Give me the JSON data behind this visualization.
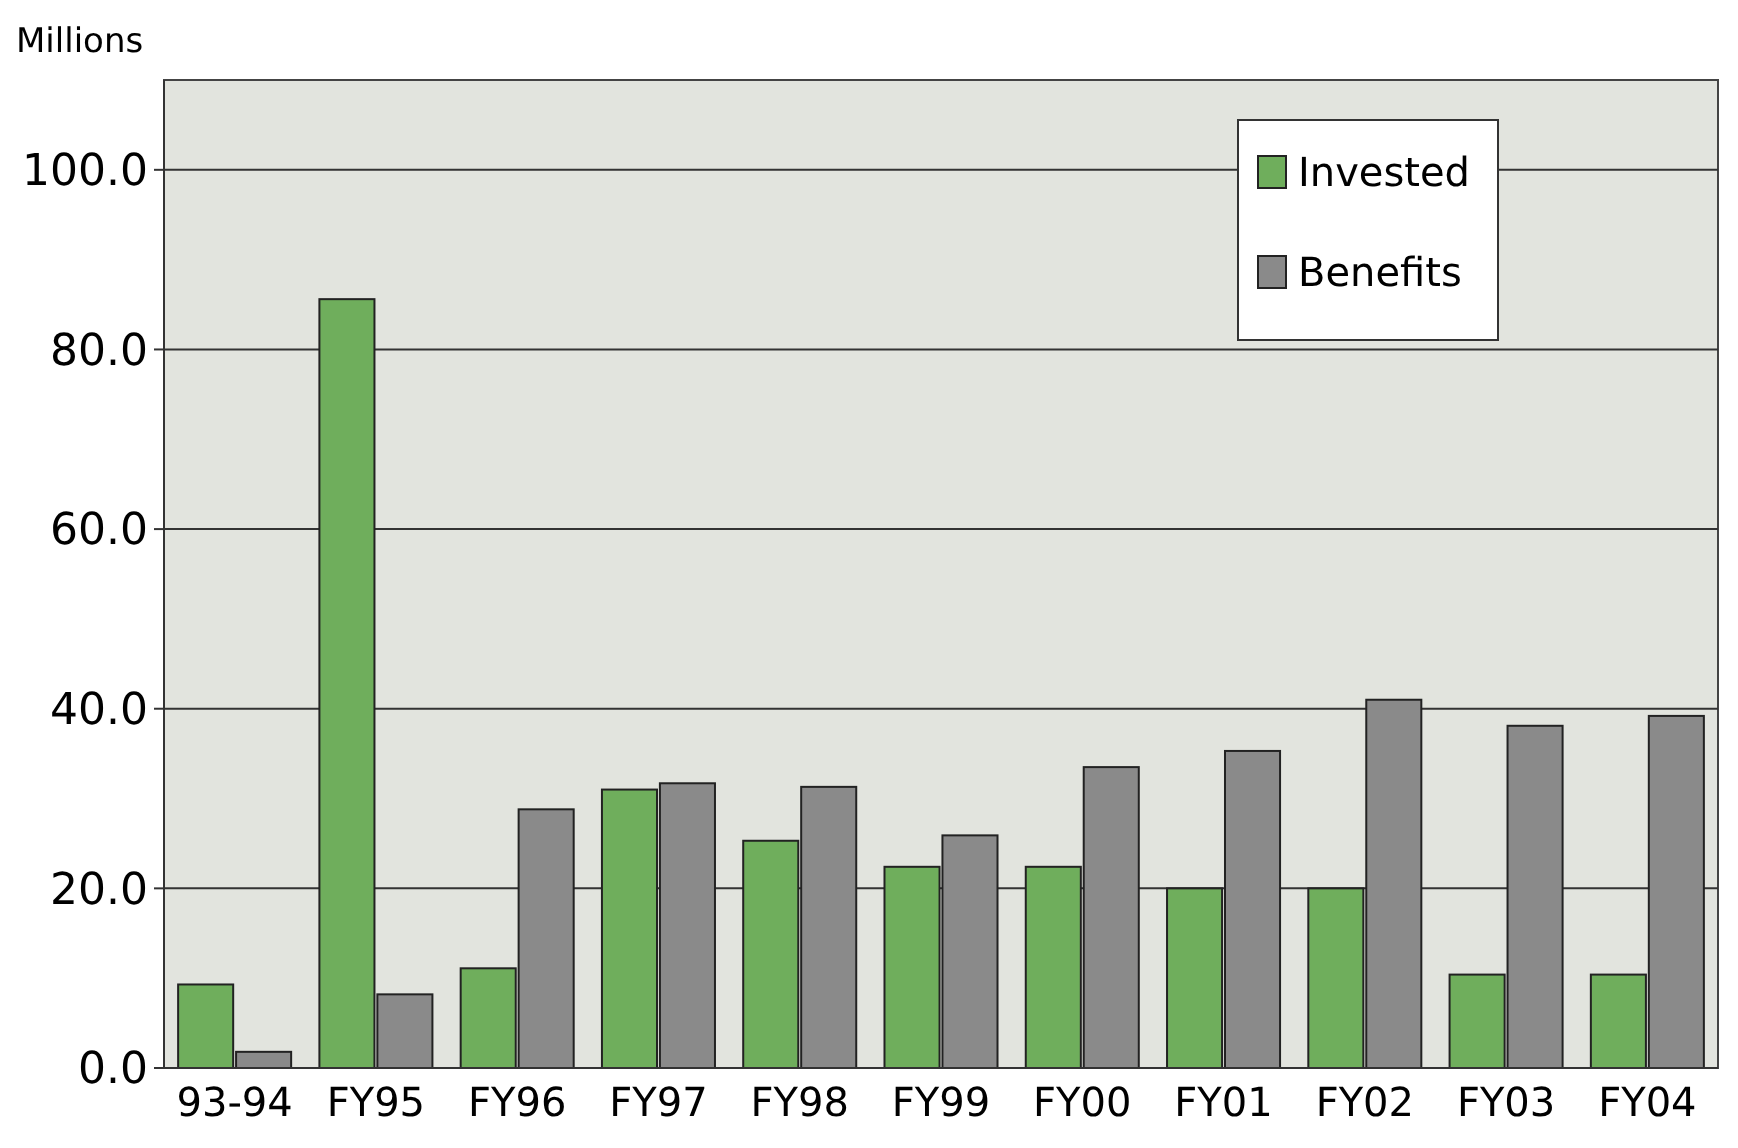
{
  "chart_data": {
    "type": "bar",
    "ylabel": "Millions",
    "categories": [
      "93-94",
      "FY95",
      "FY96",
      "FY97",
      "FY98",
      "FY99",
      "FY00",
      "FY01",
      "FY02",
      "FY03",
      "FY04"
    ],
    "series": [
      {
        "name": "Invested",
        "color": "#6fae5c",
        "values": [
          9.3,
          85.6,
          11.1,
          31,
          25.3,
          22.4,
          22.4,
          20,
          20,
          10.4,
          10.4
        ]
      },
      {
        "name": "Benefits",
        "color": "#8a8a8a",
        "values": [
          1.8,
          8.2,
          28.8,
          31.7,
          31.3,
          25.9,
          33.5,
          35.3,
          41,
          38.1,
          39.2
        ]
      }
    ],
    "ylim": [
      0,
      110
    ],
    "yticks": [
      {
        "value": 0,
        "label": "0.0"
      },
      {
        "value": 20,
        "label": "20.0"
      },
      {
        "value": 40,
        "label": "40.0"
      },
      {
        "value": 60,
        "label": "60.0"
      },
      {
        "value": 80,
        "label": "80.0"
      },
      {
        "value": 100,
        "label": "100.0"
      }
    ],
    "grid": "y",
    "legend": "top right"
  }
}
